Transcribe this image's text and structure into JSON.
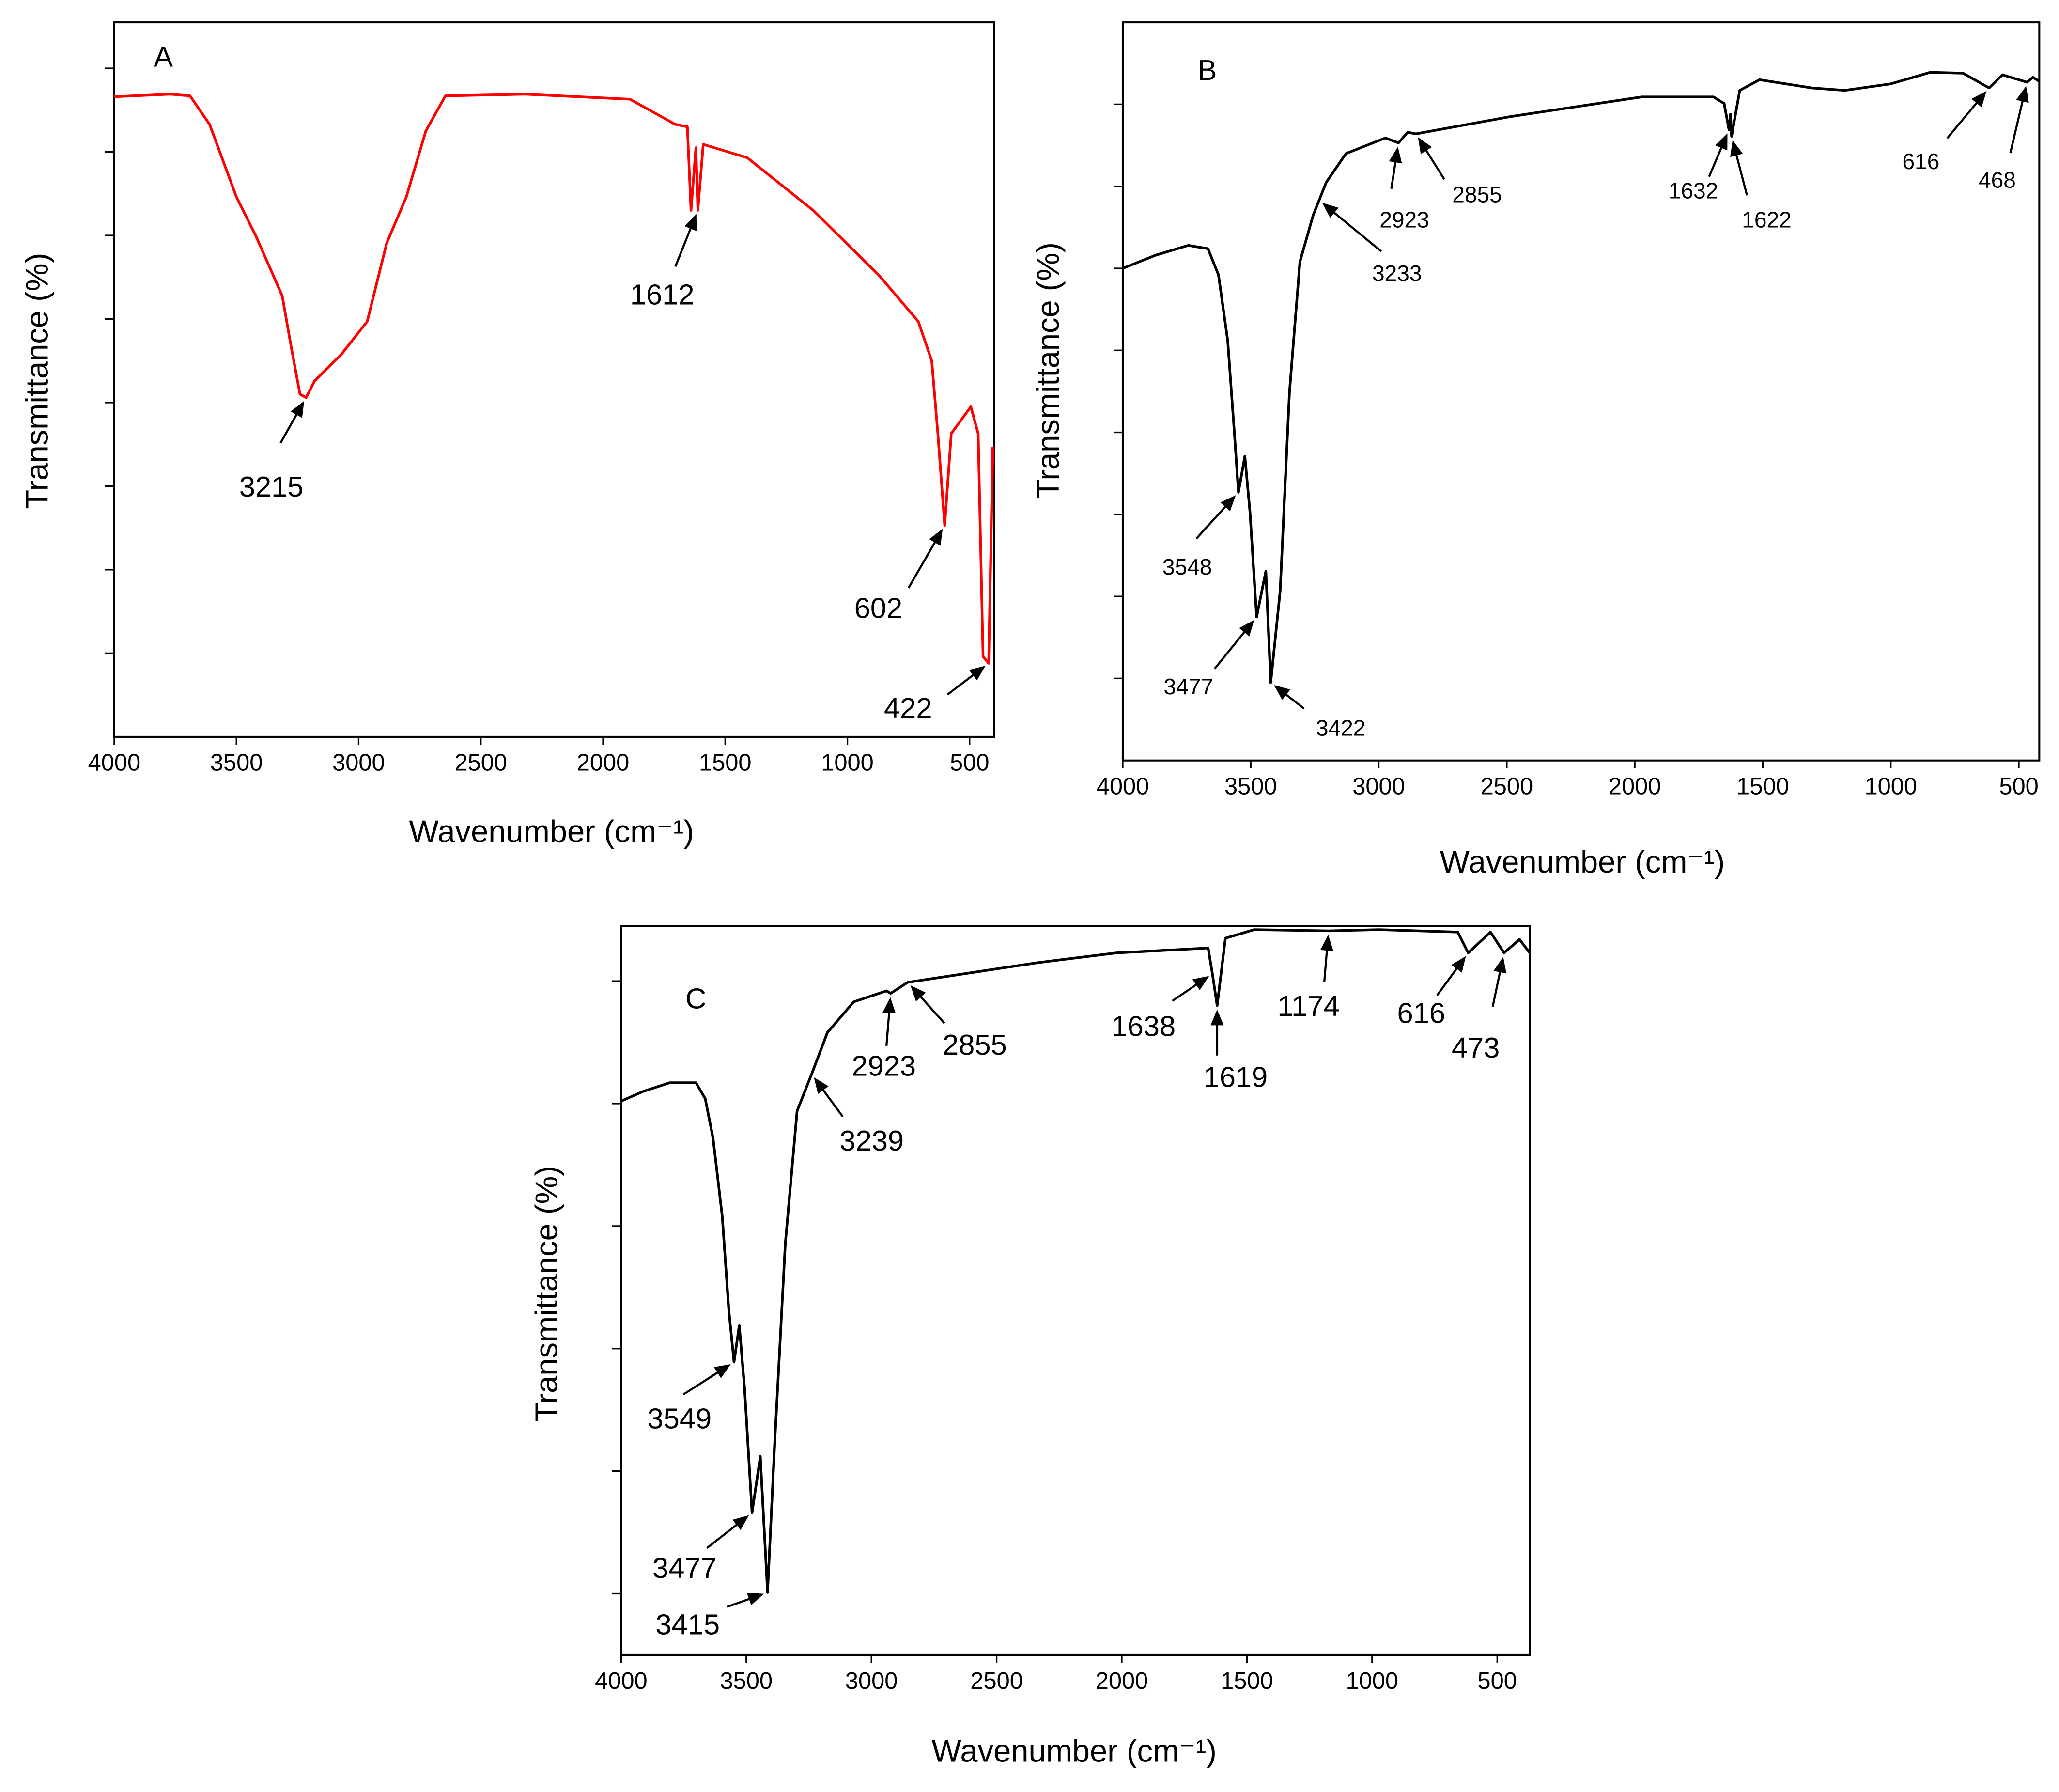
{
  "chart_data": [
    {
      "type": "line",
      "title": "A",
      "x_label": "Wavenumber (cm⁻¹)",
      "y_label": "Transmittance (%)",
      "x": [
        4000,
        3770,
        3690,
        3610,
        3500,
        3420,
        3313,
        3275,
        3240,
        3215,
        3180,
        3070,
        2965,
        2885,
        2805,
        2725,
        2645,
        2320,
        1890,
        1705,
        1655,
        1640,
        1620,
        1612,
        1590,
        1410,
        1140,
        870,
        710,
        655,
        630,
        602,
        575,
        495,
        465,
        445,
        422,
        405
      ],
      "series": [
        {
          "name": "A",
          "color": "#ff0000",
          "values": [
            7.66,
            7.69,
            7.67,
            7.33,
            6.46,
            5.99,
            5.28,
            4.65,
            4.1,
            4.06,
            4.26,
            4.58,
            4.97,
            5.91,
            6.46,
            7.25,
            7.67,
            7.69,
            7.63,
            7.33,
            7.3,
            6.3,
            7.05,
            6.3,
            7.09,
            6.93,
            6.3,
            5.52,
            4.97,
            4.5,
            3.63,
            2.53,
            3.63,
            3.95,
            3.63,
            0.96,
            0.88,
            3.47
          ]
        }
      ],
      "xlim": [
        4000,
        400
      ],
      "xticks": [
        4000,
        3500,
        3000,
        2500,
        2000,
        1500,
        1000,
        500
      ],
      "ylim": [
        0,
        8.55
      ],
      "yticks": [
        1,
        2,
        3,
        4,
        5,
        6,
        7,
        8
      ],
      "annotations": [
        {
          "x": 3215,
          "text": "3215"
        },
        {
          "x": 1612,
          "text": "1612"
        },
        {
          "x": 602,
          "text": "602"
        },
        {
          "x": 422,
          "text": "422"
        }
      ]
    },
    {
      "type": "line",
      "title": "B",
      "x_label": "Wavenumber (cm⁻¹)",
      "y_label": "Transmittance (%)",
      "x": [
        4000,
        3872,
        3744,
        3667,
        3626,
        3590,
        3564,
        3548,
        3523,
        3503,
        3477,
        3441,
        3422,
        3385,
        3349,
        3308,
        3256,
        3205,
        3128,
        2974,
        2923,
        2887,
        2855,
        2487,
        1974,
        1692,
        1651,
        1632,
        1626,
        1622,
        1590,
        1513,
        1410,
        1308,
        1180,
        1000,
        846,
        718,
        616,
        564,
        468,
        445,
        420
      ],
      "series": [
        {
          "name": "B",
          "color": "#000000",
          "values": [
            6.0,
            6.16,
            6.28,
            6.24,
            5.92,
            5.12,
            4.0,
            3.27,
            3.71,
            3.03,
            1.75,
            2.31,
            0.95,
            2.07,
            4.48,
            6.08,
            6.65,
            7.05,
            7.4,
            7.59,
            7.53,
            7.66,
            7.64,
            7.85,
            8.09,
            8.09,
            8.01,
            7.69,
            7.88,
            7.61,
            8.17,
            8.3,
            8.25,
            8.2,
            8.17,
            8.25,
            8.39,
            8.38,
            8.2,
            8.36,
            8.27,
            8.33,
            8.28
          ]
        }
      ],
      "xlim": [
        4000,
        420
      ],
      "xticks": [
        4000,
        3500,
        3000,
        2500,
        2000,
        1500,
        1000,
        500
      ],
      "ylim": [
        0,
        9
      ],
      "yticks": [
        1,
        2,
        3,
        4,
        5,
        6,
        7,
        8
      ],
      "annotations": [
        {
          "x": 3548,
          "text": "3548"
        },
        {
          "x": 3477,
          "text": "3477"
        },
        {
          "x": 3422,
          "text": "3422"
        },
        {
          "x": 3233,
          "text": "3233"
        },
        {
          "x": 2923,
          "text": "2923"
        },
        {
          "x": 2855,
          "text": "2855"
        },
        {
          "x": 1632,
          "text": "1632"
        },
        {
          "x": 1622,
          "text": "1622"
        },
        {
          "x": 616,
          "text": "616"
        },
        {
          "x": 468,
          "text": "468"
        }
      ]
    },
    {
      "type": "line",
      "title": "C",
      "x_label": "Wavenumber (cm⁻¹)",
      "y_label": "Transmittance (%)",
      "x": [
        4000,
        3911,
        3806,
        3701,
        3664,
        3633,
        3596,
        3570,
        3549,
        3528,
        3507,
        3477,
        3444,
        3415,
        3386,
        3344,
        3297,
        3239,
        3176,
        3071,
        2940,
        2923,
        2855,
        2337,
        2022,
        1655,
        1638,
        1619,
        1586,
        1471,
        1174,
        972,
        658,
        616,
        527,
        473,
        411,
        370
      ],
      "series": [
        {
          "name": "C",
          "color": "#000000",
          "values": [
            5.02,
            5.1,
            5.17,
            5.17,
            5.04,
            4.72,
            4.08,
            3.32,
            2.89,
            3.19,
            2.68,
            1.66,
            2.12,
            1.01,
            2.25,
            3.86,
            4.94,
            5.24,
            5.58,
            5.83,
            5.92,
            5.9,
            5.99,
            6.15,
            6.23,
            6.27,
            6.06,
            5.8,
            6.35,
            6.42,
            6.41,
            6.42,
            6.4,
            6.23,
            6.4,
            6.23,
            6.34,
            6.23
          ]
        }
      ],
      "xlim": [
        4000,
        370
      ],
      "xticks": [
        4000,
        3500,
        3000,
        2500,
        2000,
        1500,
        1000,
        500
      ],
      "ylim": [
        0.5,
        6.45
      ],
      "yticks": [
        1,
        2,
        3,
        4,
        5,
        6
      ],
      "annotations": [
        {
          "x": 3549,
          "text": "3549"
        },
        {
          "x": 3477,
          "text": "3477"
        },
        {
          "x": 3415,
          "text": "3415"
        },
        {
          "x": 3239,
          "text": "3239"
        },
        {
          "x": 2923,
          "text": "2923"
        },
        {
          "x": 2855,
          "text": "2855"
        },
        {
          "x": 1638,
          "text": "1638"
        },
        {
          "x": 1619,
          "text": "1619"
        },
        {
          "x": 1174,
          "text": "1174"
        },
        {
          "x": 616,
          "text": "616"
        },
        {
          "x": 473,
          "text": "473"
        }
      ]
    }
  ]
}
